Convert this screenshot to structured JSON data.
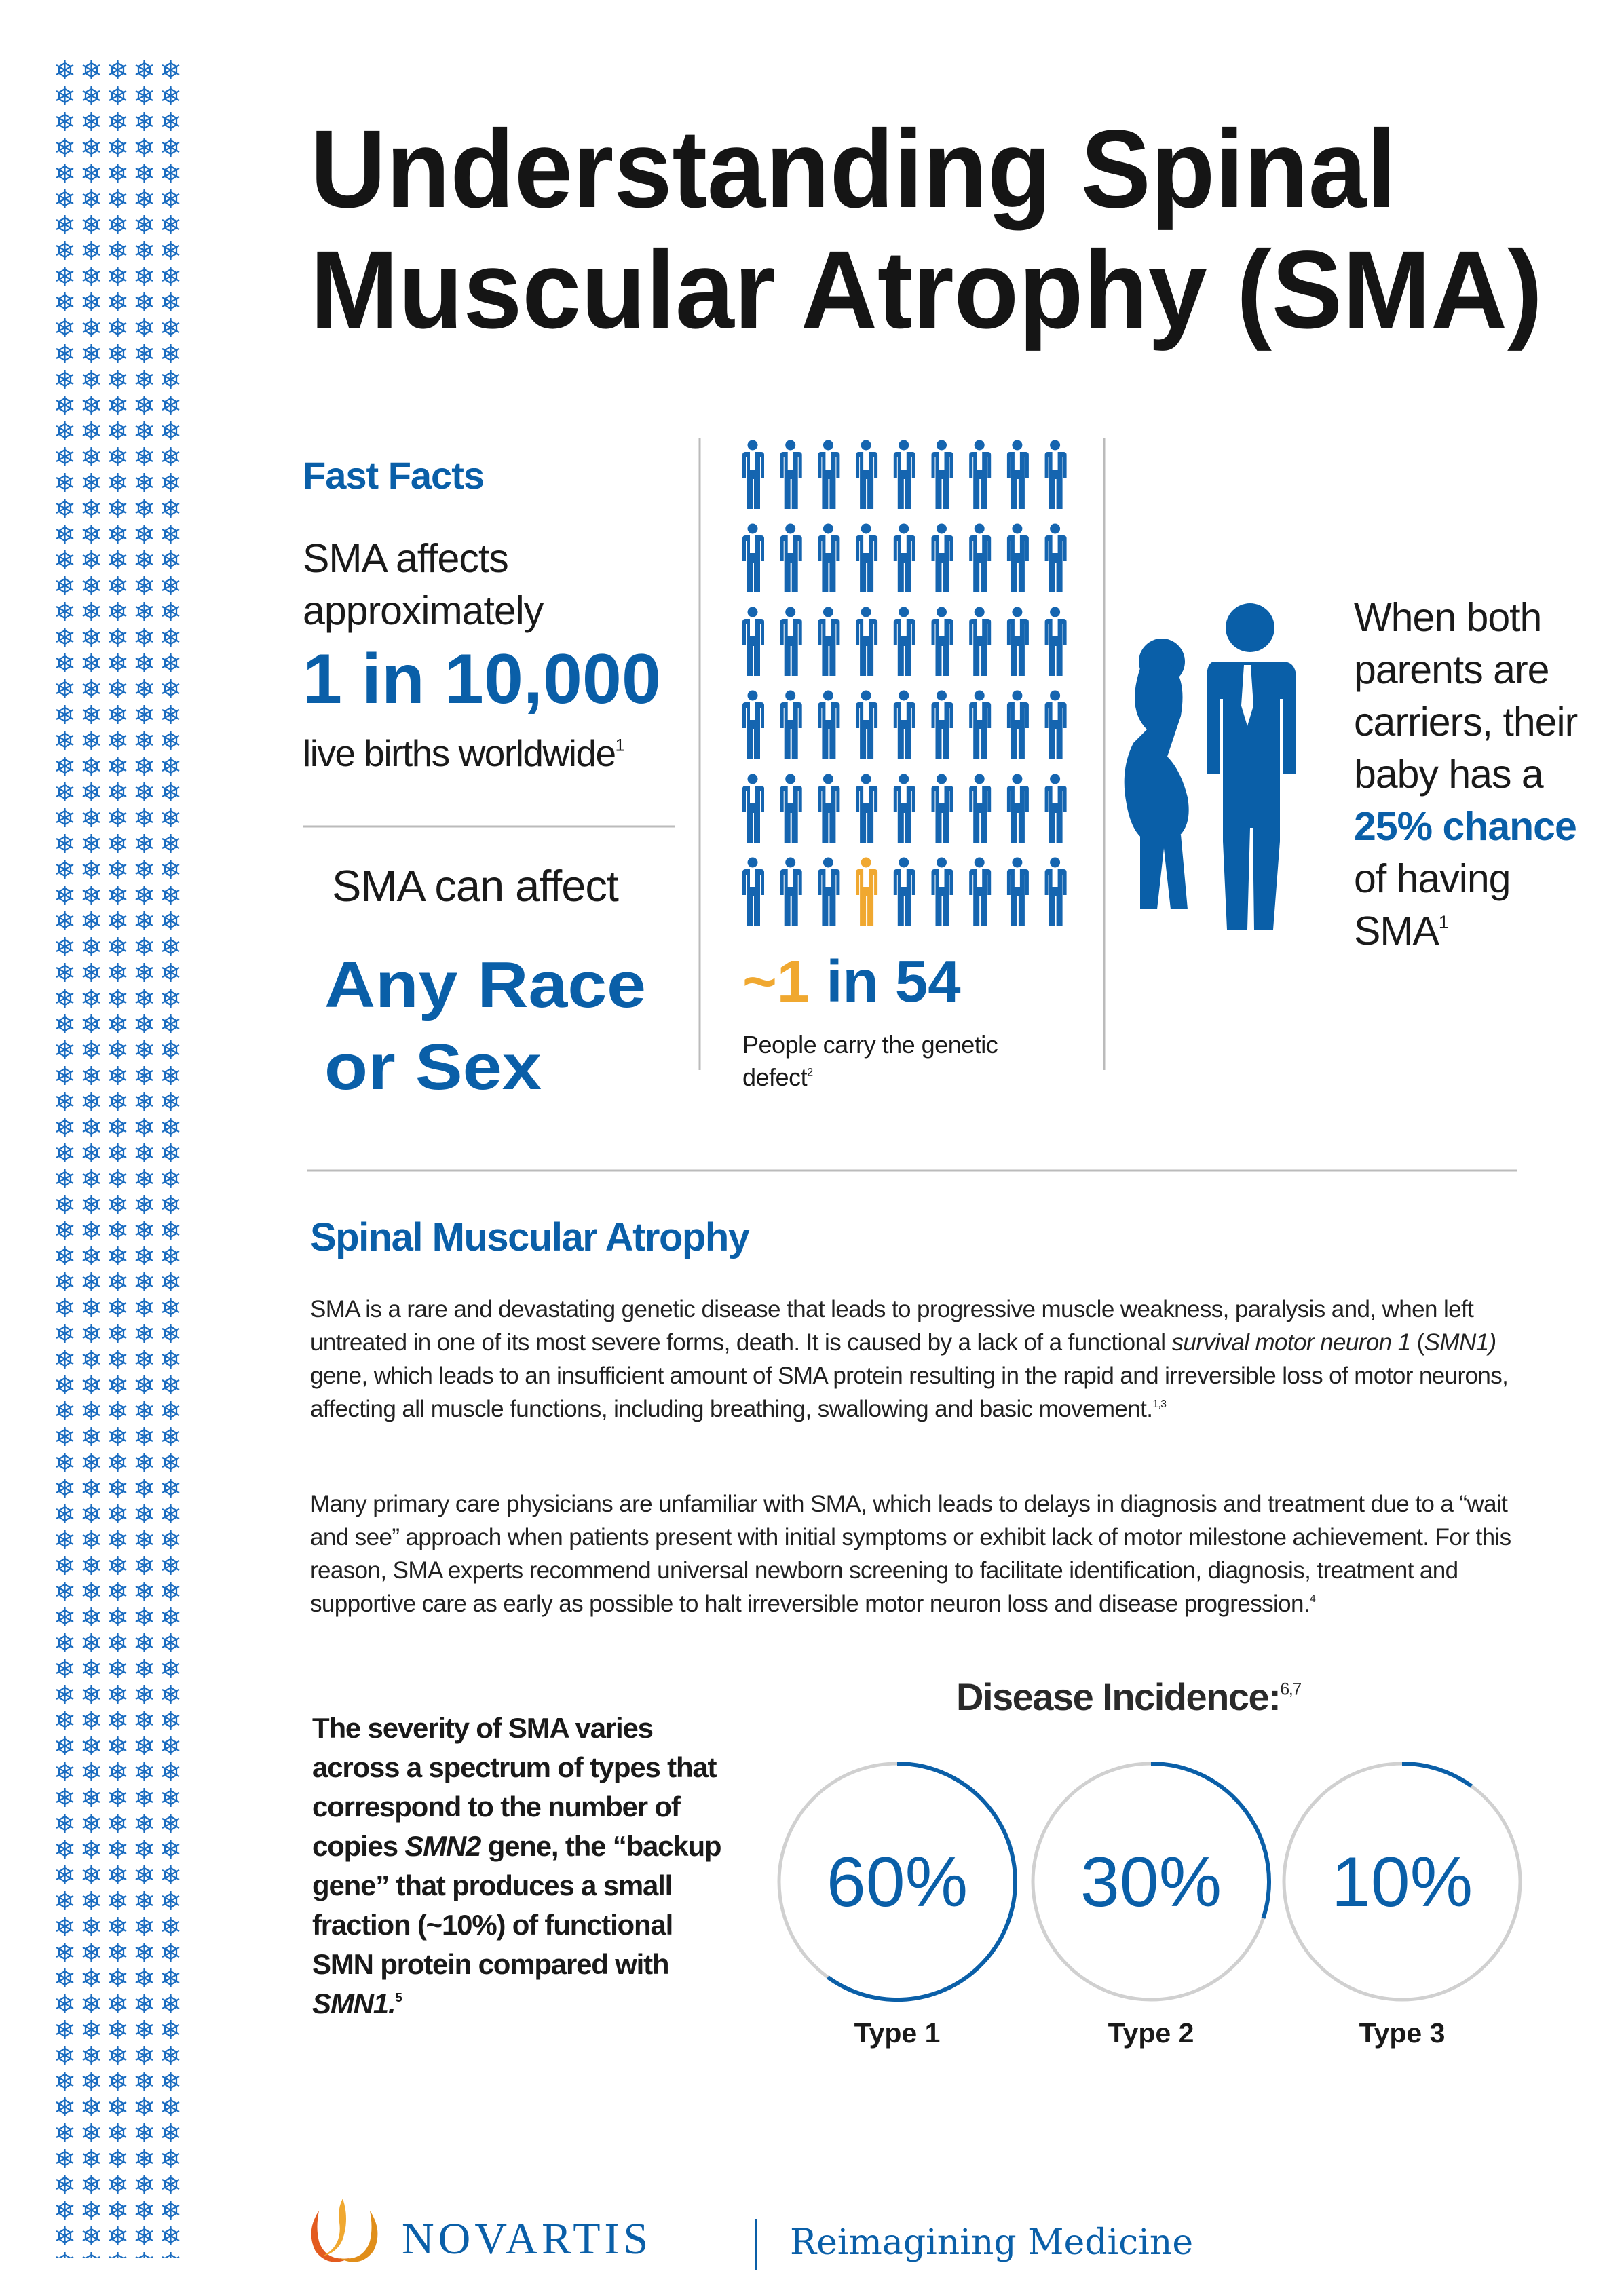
{
  "title": [
    "Understanding Spinal",
    "Muscular Atrophy (SMA)"
  ],
  "fast_facts": {
    "heading": "Fast Facts",
    "lines": [
      "SMA affects",
      "approximately"
    ],
    "stat": "1 in 10,000",
    "caption": "live births worldwide",
    "caption_ref": "1"
  },
  "reach": {
    "lead": "SMA can affect",
    "stat": [
      "Any Race",
      "or Sex"
    ]
  },
  "carriers": {
    "stat_highlight": "~1",
    "stat_rest": " in 54",
    "caption": "People carry the genetic defect",
    "caption_ref": "2"
  },
  "parents": {
    "text_before": "When both parents are carriers, their baby has a",
    "highlight": "25% chance",
    "text_after": "of having SMA",
    "ref": "1"
  },
  "section": {
    "heading": "Spinal Muscular Atrophy",
    "paragraph_1": [
      "SMA is a rare and devastating genetic disease that leads to progressive muscle weakness, paralysis and, when left untreated in one of its most severe forms, death. It is caused by a lack of a functional ",
      "survival motor neuron 1",
      " (",
      "SMN1)",
      " gene, which leads to an insufficient amount of SMA protein resulting in the rapid and irreversible loss of motor neurons, affecting all muscle functions, including breathing, swallowing and basic movement.",
      "1,3"
    ],
    "paragraph_2": [
      "Many primary care physicians are unfamiliar with SMA, which leads to delays in diagnosis and treatment due to a “wait and see” approach when patients present with initial symptoms or exhibit lack of motor milestone achievement. For this reason, SMA experts recommend universal newborn screening to facilitate identification, diagnosis, treatment and supportive care as early as possible to halt irreversible motor neuron loss and disease progression.",
      "4"
    ]
  },
  "severity": [
    "The severity of SMA varies across a spectrum of types that correspond to the number of copies ",
    "SMN2",
    " gene, the “backup gene” that produces a small fraction (~10%) of functional SMN protein compared with ",
    "SMN1.",
    "5"
  ],
  "incidence": {
    "type": "pie",
    "title": "Disease Incidence:",
    "title_ref": "6,7",
    "categories": [
      "Type 1",
      "Type 2",
      "Type 3"
    ],
    "values": [
      60,
      30,
      10
    ],
    "value_labels": [
      "60%",
      "30%",
      "10%"
    ],
    "ylim": [
      0,
      100
    ],
    "color": "#0a5fa8"
  },
  "footer": {
    "brand": "NOVARTIS",
    "tagline": "Reimagining Medicine"
  }
}
